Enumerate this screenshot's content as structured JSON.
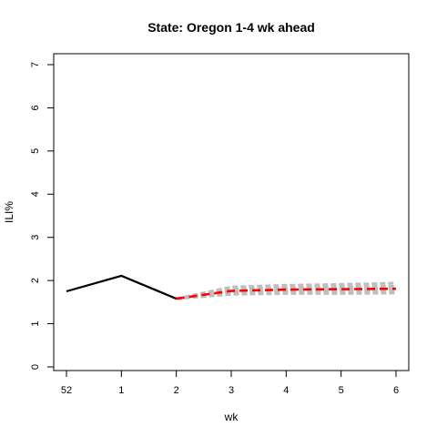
{
  "chart_data": {
    "type": "line",
    "title": "State: Oregon 1-4 wk ahead",
    "xlabel": "wk",
    "ylabel": "ILI%",
    "x_tick_labels": [
      "52",
      "1",
      "2",
      "3",
      "4",
      "5",
      "6"
    ],
    "y_ticks": [
      0,
      1,
      2,
      3,
      4,
      5,
      6,
      7
    ],
    "ylim": [
      0,
      7
    ],
    "grid": false,
    "colors": {
      "observed": "#000000",
      "forecast": "#ff0000",
      "ensemble": "#bebebe"
    },
    "observed": {
      "x": [
        "52",
        "1",
        "2"
      ],
      "values": [
        1.75,
        2.11,
        1.58
      ]
    },
    "forecast": {
      "x": [
        "2",
        "3",
        "4",
        "5",
        "6"
      ],
      "values": [
        1.58,
        1.76,
        1.79,
        1.8,
        1.81
      ]
    },
    "ensemble": [
      {
        "x": [
          "2",
          "3",
          "4",
          "5",
          "6"
        ],
        "values": [
          1.58,
          1.68,
          1.7,
          1.7,
          1.71
        ]
      },
      {
        "x": [
          "2",
          "3",
          "4",
          "5",
          "6"
        ],
        "values": [
          1.58,
          1.72,
          1.74,
          1.75,
          1.75
        ]
      },
      {
        "x": [
          "2",
          "3",
          "4",
          "5",
          "6"
        ],
        "values": [
          1.58,
          1.76,
          1.79,
          1.8,
          1.81
        ]
      },
      {
        "x": [
          "2",
          "3",
          "4",
          "5",
          "6"
        ],
        "values": [
          1.58,
          1.8,
          1.84,
          1.86,
          1.87
        ]
      },
      {
        "x": [
          "2",
          "3",
          "4",
          "5",
          "6"
        ],
        "values": [
          1.58,
          1.85,
          1.89,
          1.91,
          1.94
        ]
      }
    ]
  }
}
